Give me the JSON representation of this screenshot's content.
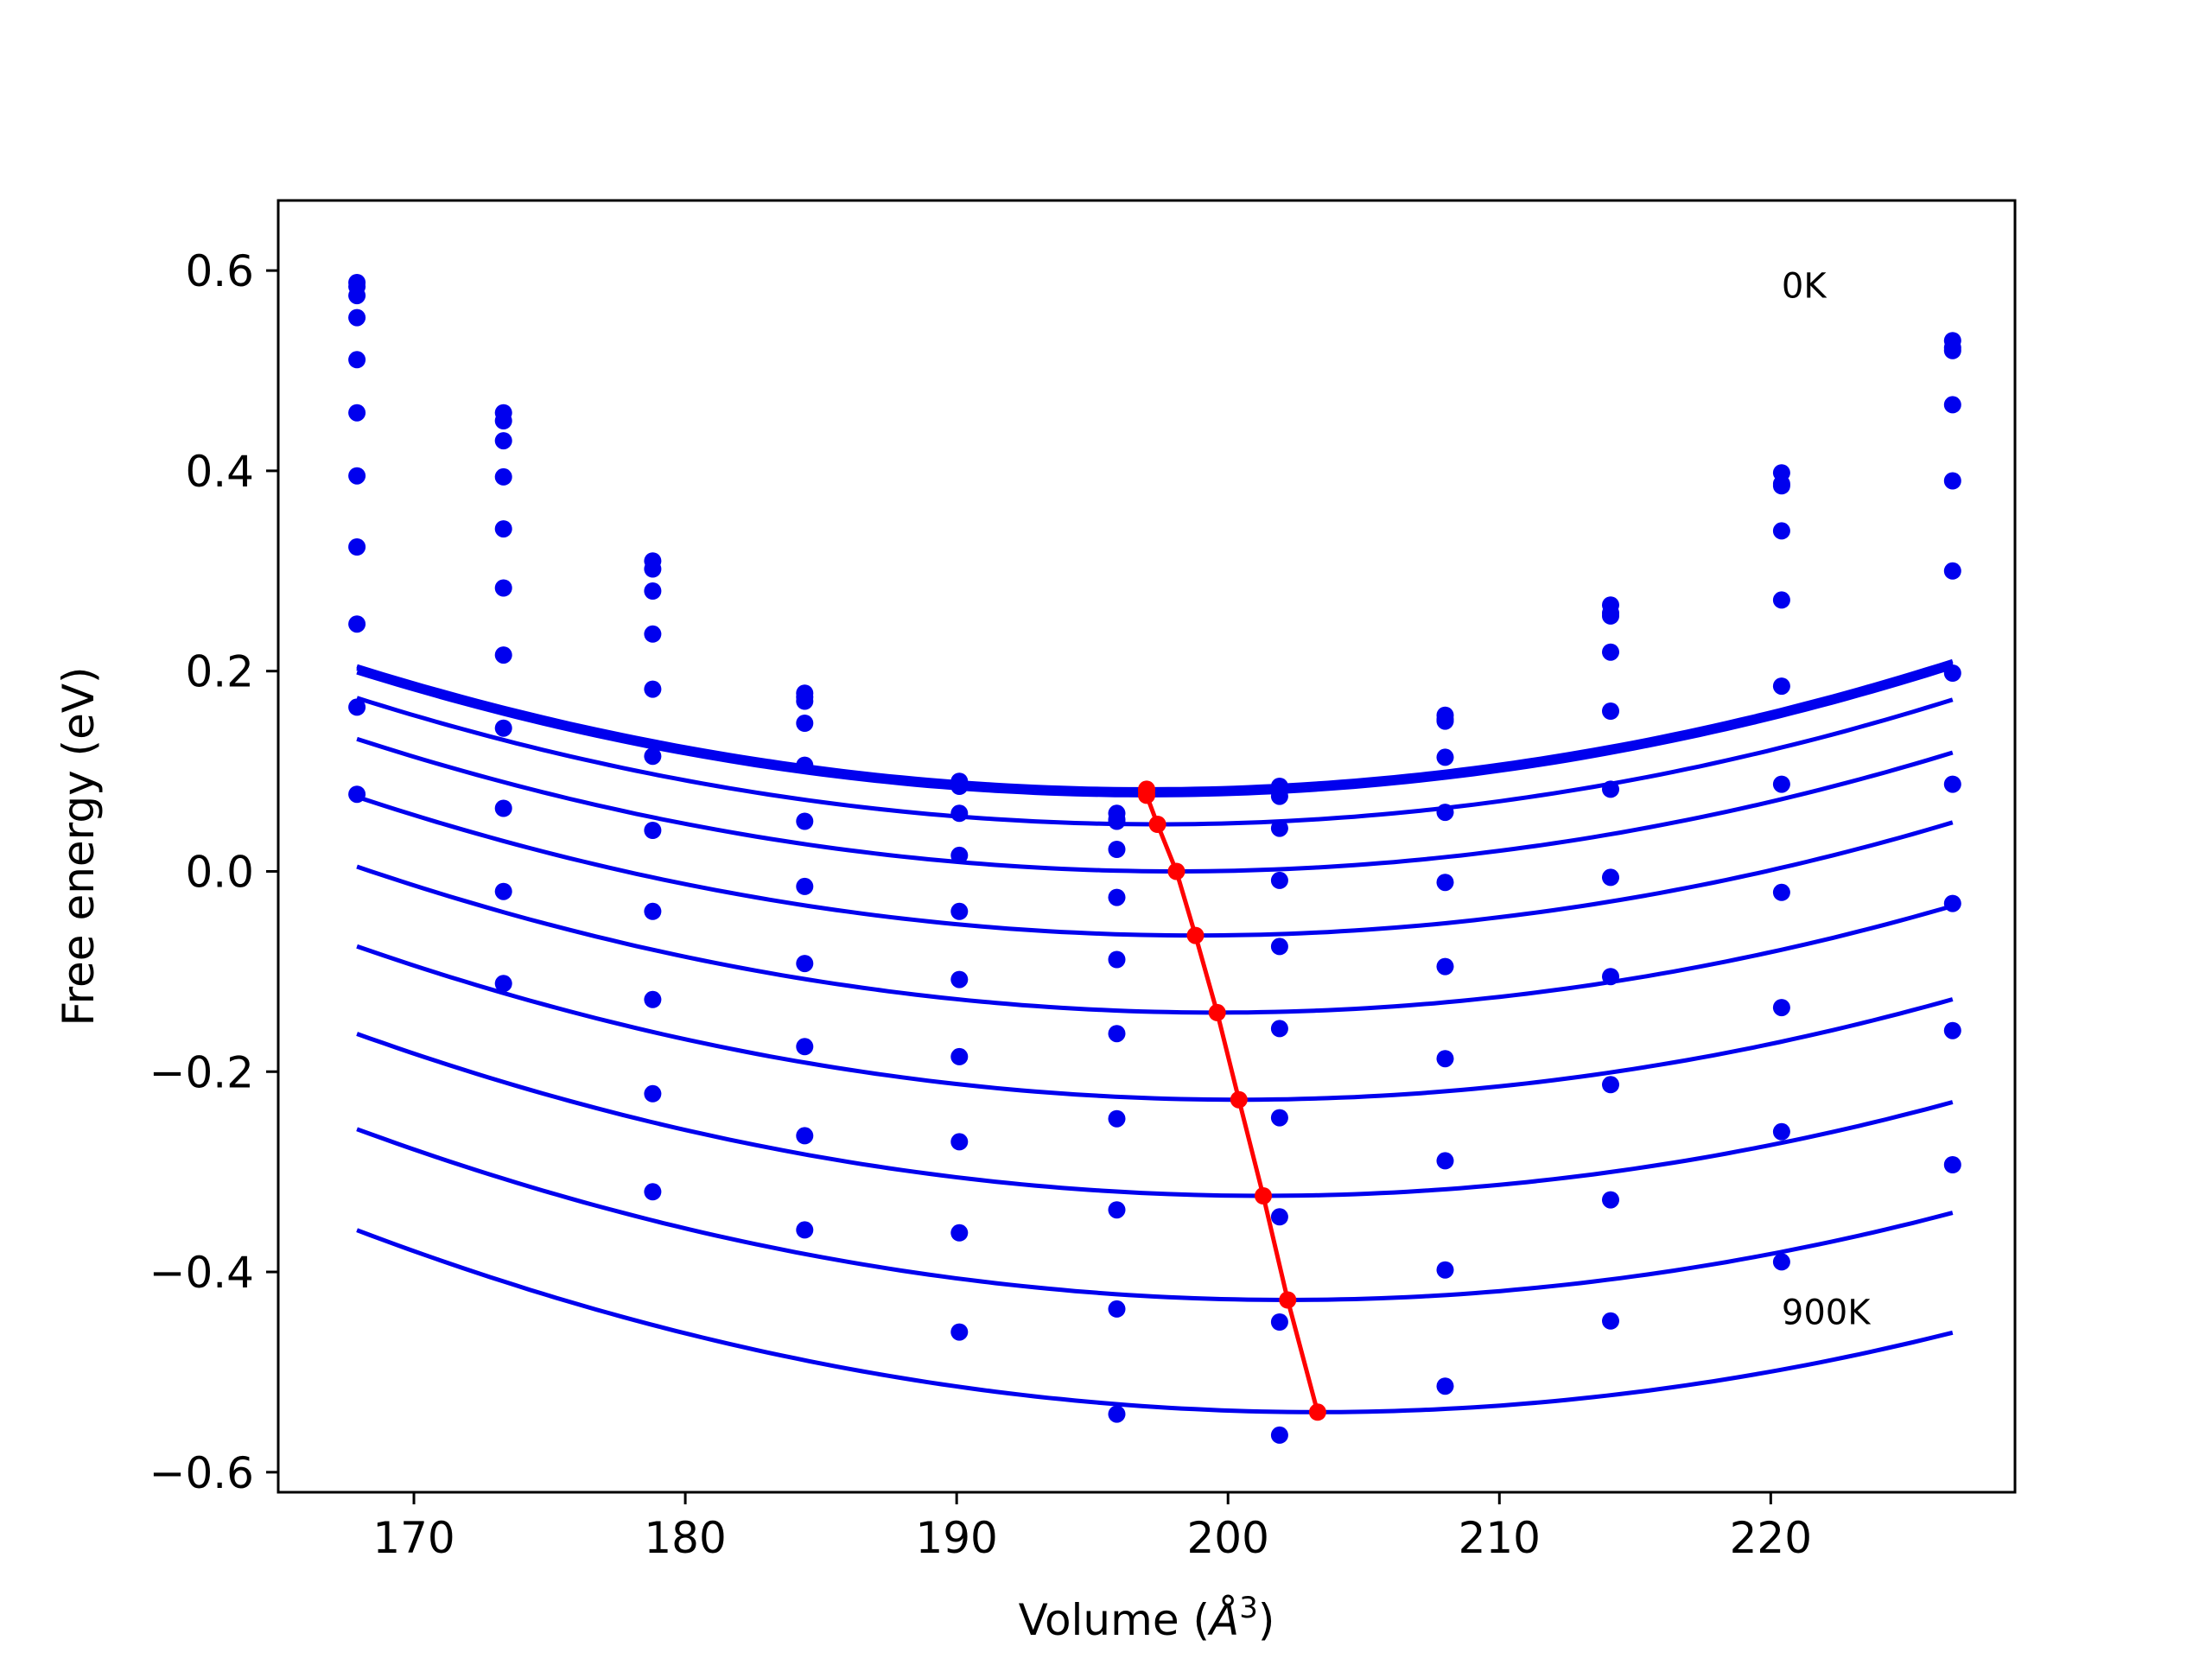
{
  "chart_data": {
    "type": "scatter",
    "xlabel": "Volume (",
    "xlabel_symbol": "Å",
    "xlabel_exp": "3",
    "xlabel_close": ")",
    "ylabel": "Free energy (eV)",
    "xlim": [
      165,
      229
    ],
    "ylim": [
      -0.62,
      0.67
    ],
    "xticks": [
      170,
      180,
      190,
      200,
      210,
      220
    ],
    "xtick_labels": [
      "170",
      "180",
      "190",
      "200",
      "210",
      "220"
    ],
    "yticks": [
      -0.6,
      -0.4,
      -0.2,
      0.0,
      0.2,
      0.4,
      0.6
    ],
    "ytick_labels": [
      "−0.6",
      "−0.4",
      "−0.2",
      "0.0",
      "0.2",
      "0.4",
      "0.6"
    ],
    "grid": false,
    "annotations": [
      {
        "text": "0K",
        "x": 220.4,
        "y": 0.585
      },
      {
        "text": "900K",
        "x": 220.4,
        "y": -0.44
      }
    ],
    "colors": {
      "curves": "#0000ee",
      "min_line": "#ff0000",
      "axes": "#000000"
    },
    "volumes": [
      167.9,
      173.3,
      178.8,
      184.4,
      190.1,
      195.9,
      201.9,
      208.0,
      214.1,
      220.4,
      226.7
    ],
    "fit_range": [
      167.9,
      226.7
    ],
    "series": [
      {
        "v0": 197.0,
        "e0": 0.082,
        "k": 0.000145,
        "values": [
          0.588,
          0.458,
          0.31,
          0.178,
          0.09,
          0.058,
          0.085,
          0.156,
          0.266,
          0.398,
          0.53
        ]
      },
      {
        "v0": 197.0,
        "e0": 0.08,
        "k": 0.000145,
        "values": [
          0.584,
          0.45,
          0.302,
          0.174,
          0.087,
          0.052,
          0.08,
          0.152,
          0.258,
          0.387,
          0.523
        ]
      },
      {
        "v0": 197.0,
        "e0": 0.076,
        "k": 0.000145,
        "values": [
          0.575,
          0.43,
          0.28,
          0.17,
          0.085,
          0.05,
          0.075,
          0.15,
          0.255,
          0.385,
          0.52
        ]
      },
      {
        "v0": 197.4,
        "e0": 0.047,
        "k": 0.000145,
        "values": [
          0.553,
          0.394,
          0.237,
          0.148,
          0.058,
          0.022,
          0.043,
          0.114,
          0.219,
          0.34,
          0.466
        ]
      },
      {
        "v0": 198.1,
        "e0": 0.0,
        "k": 0.000145,
        "values": [
          0.511,
          0.342,
          0.182,
          0.106,
          0.016,
          -0.026,
          -0.009,
          0.059,
          0.16,
          0.271,
          0.39
        ]
      },
      {
        "v0": 198.8,
        "e0": -0.064,
        "k": 0.000145,
        "values": [
          0.458,
          0.283,
          0.115,
          0.05,
          -0.04,
          -0.088,
          -0.075,
          -0.011,
          0.082,
          0.185,
          0.3
        ]
      },
      {
        "v0": 199.6,
        "e0": -0.141,
        "k": 0.000145,
        "values": [
          0.395,
          0.216,
          0.041,
          -0.015,
          -0.108,
          -0.162,
          -0.157,
          -0.095,
          -0.006,
          0.087,
          0.198
        ]
      },
      {
        "v0": 200.4,
        "e0": -0.228,
        "k": 0.000145,
        "values": [
          0.324,
          0.143,
          -0.04,
          -0.092,
          -0.185,
          -0.247,
          -0.246,
          -0.187,
          -0.105,
          -0.021,
          0.087
        ]
      },
      {
        "v0": 201.3,
        "e0": -0.324,
        "k": 0.000145,
        "values": [
          0.247,
          0.063,
          -0.128,
          -0.175,
          -0.27,
          -0.338,
          -0.345,
          -0.289,
          -0.213,
          -0.136,
          -0.032
        ]
      },
      {
        "v0": 202.2,
        "e0": -0.428,
        "k": 0.000145,
        "values": [
          0.164,
          -0.02,
          -0.222,
          -0.264,
          -0.361,
          -0.437,
          -0.45,
          -0.398,
          -0.328,
          -0.26,
          -0.159
        ]
      },
      {
        "v0": 203.3,
        "e0": -0.54,
        "k": 0.000145,
        "values": [
          0.077,
          -0.112,
          -0.32,
          -0.358,
          -0.46,
          -0.542,
          -0.563,
          -0.514,
          -0.449,
          -0.39,
          -0.293
        ]
      }
    ],
    "minimum_line": {
      "x": [
        197.0,
        197.0,
        197.0,
        197.4,
        198.1,
        198.8,
        199.6,
        200.4,
        201.3,
        202.2,
        203.3
      ],
      "y": [
        0.082,
        0.08,
        0.076,
        0.047,
        0.0,
        -0.064,
        -0.141,
        -0.228,
        -0.324,
        -0.428,
        -0.54
      ]
    }
  }
}
